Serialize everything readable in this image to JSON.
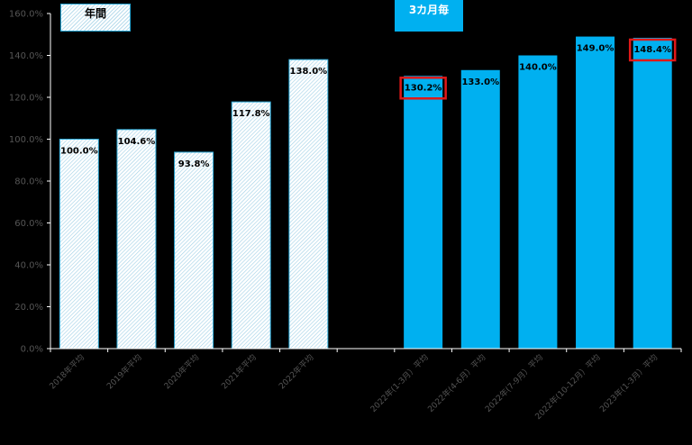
{
  "legend": {
    "annual_label": "年間",
    "quarterly_label": "3カ月毎"
  },
  "colors": {
    "quarterly_bar": "#00b0f0",
    "annual_hatch": "#b8dcec",
    "annual_border": "#29a8d6",
    "highlight_box": "#e01818",
    "axis": "#ffffff"
  },
  "chart_data": {
    "type": "bar",
    "ylim": [
      0,
      160
    ],
    "ytick_step": 20,
    "ytick_labels": [
      "0.0%",
      "20.0%",
      "40.0%",
      "60.0%",
      "80.0%",
      "100.0%",
      "120.0%",
      "140.0%",
      "160.0%"
    ],
    "grid": false,
    "categories": [
      "2018年平均",
      "2019年平均",
      "2020年平均",
      "2021年平均",
      "2022年平均",
      "",
      "2022年(1-3月）平均",
      "2022年(4-6月）平均",
      "2022年(7-9月）平均",
      "2022年(10-12月）平均",
      "2023年(1-3月）平均"
    ],
    "series": [
      {
        "name": "年間",
        "style": "hatched",
        "values": [
          100.0,
          104.6,
          93.8,
          117.8,
          138.0,
          null,
          null,
          null,
          null,
          null,
          null
        ],
        "labels": [
          "100.0%",
          "104.6%",
          "93.8%",
          "117.8%",
          "138.0%",
          "",
          "",
          "",
          "",
          "",
          ""
        ]
      },
      {
        "name": "3カ月毎",
        "style": "solid",
        "values": [
          null,
          null,
          null,
          null,
          null,
          null,
          130.2,
          133.0,
          140.0,
          149.0,
          148.4
        ],
        "labels": [
          "",
          "",
          "",
          "",
          "",
          "",
          "130.2%",
          "133.0%",
          "140.0%",
          "149.0%",
          "148.4%"
        ]
      }
    ],
    "highlighted": [
      "2022年(1-3月）平均",
      "2023年(1-3月）平均"
    ]
  }
}
